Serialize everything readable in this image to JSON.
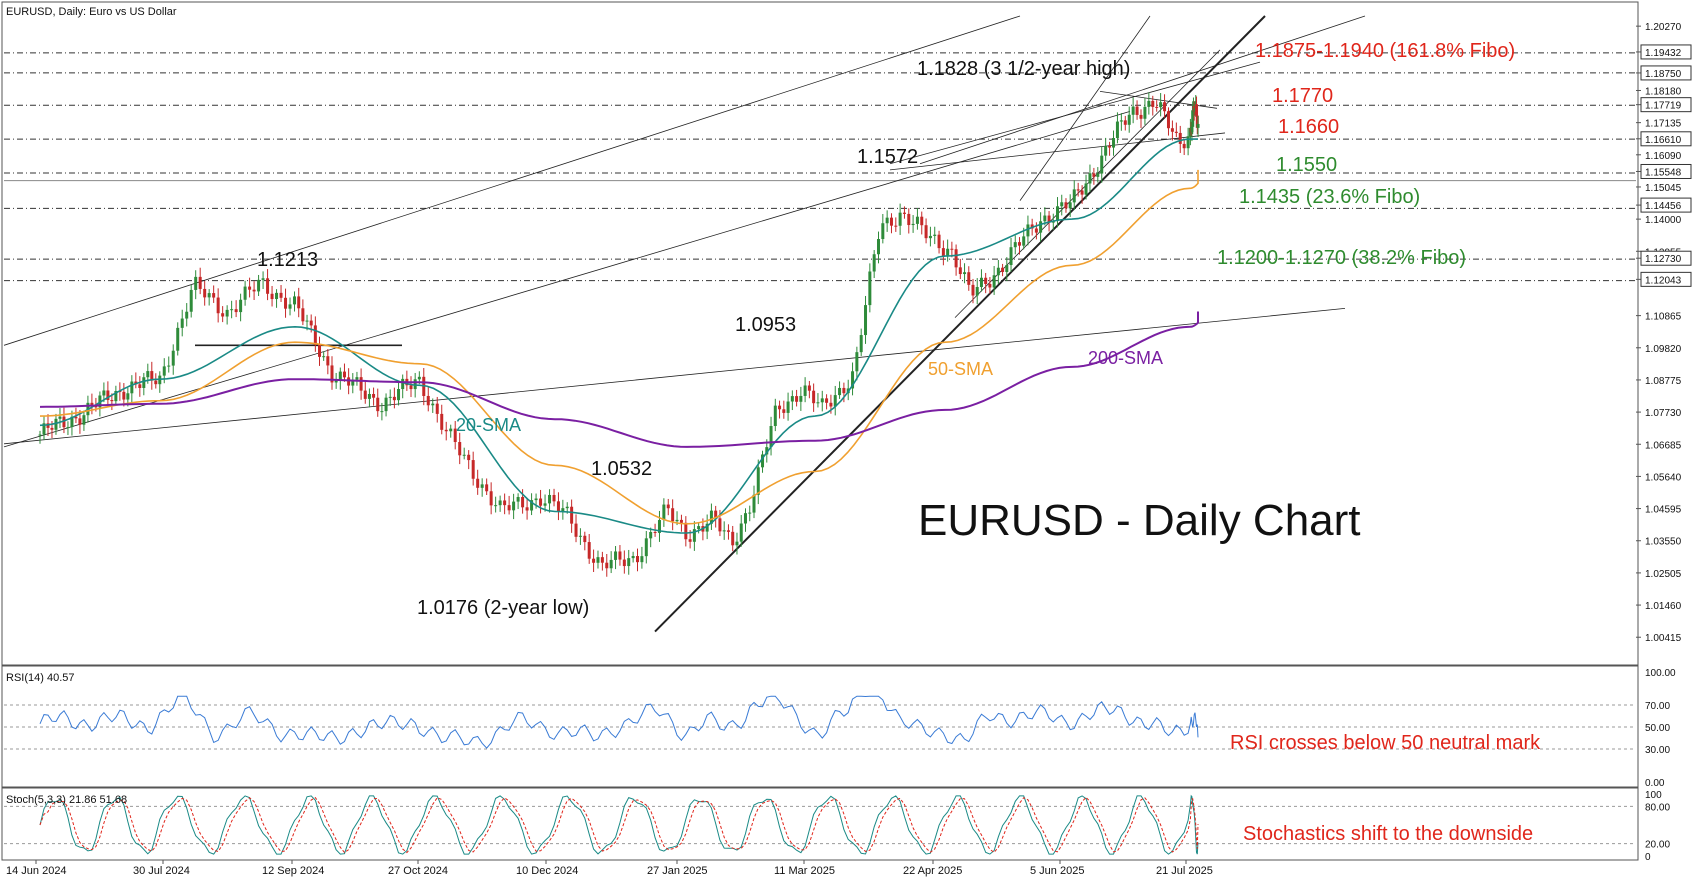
{
  "header": {
    "title": "EURUSD, Daily:  Euro vs US Dollar"
  },
  "chart_title": "EURUSD - Daily Chart",
  "colors": {
    "background": "#ffffff",
    "candle_up": "#2e8b3a",
    "candle_down": "#c62828",
    "sma20": "#1a8a86",
    "sma50": "#f0a030",
    "sma200": "#7a1fa2",
    "resistance_text": "#e0261b",
    "support_text": "#2e8b2e",
    "annotation_text": "#111111",
    "grid_dash": "#444444",
    "rsi_line": "#3a7bd5",
    "stoch_main": "#1a8a86",
    "stoch_signal": "#e0261b"
  },
  "price_axis": {
    "ticks": [
      "1.20270",
      "1.19432",
      "1.18750",
      "1.18180",
      "1.17719",
      "1.17135",
      "1.16610",
      "1.16090",
      "1.15548",
      "1.15045",
      "1.14456",
      "1.14000",
      "1.12955",
      "1.12730",
      "1.12043",
      "1.10865",
      "1.09820",
      "1.08775",
      "1.07730",
      "1.06685",
      "1.05640",
      "1.04595",
      "1.03550",
      "1.02505",
      "1.01460",
      "1.00415"
    ],
    "highlighted": [
      "1.19432",
      "1.18750",
      "1.17719",
      "1.16610",
      "1.15548",
      "1.14456",
      "1.12730",
      "1.12043"
    ]
  },
  "time_axis": [
    "14 Jun 2024",
    "30 Jul 2024",
    "12 Sep 2024",
    "27 Oct 2024",
    "10 Dec 2024",
    "27 Jan 2025",
    "11 Mar 2025",
    "22 Apr 2025",
    "5 Jun 2025",
    "21 Jul 2025"
  ],
  "levels": [
    {
      "label": "1.1875-1.1940 (161.8% Fibo)",
      "kind": "resistance"
    },
    {
      "label": "1.1770",
      "kind": "resistance"
    },
    {
      "label": "1.1660",
      "kind": "resistance"
    },
    {
      "label": "1.1550",
      "kind": "support"
    },
    {
      "label": "1.1435 (23.6% Fibo)",
      "kind": "support"
    },
    {
      "label": "1.1200-1.1270 (38.2% Fibo)",
      "kind": "support"
    }
  ],
  "annotations": {
    "high_1213": "1.1213",
    "high_0953": "1.0953",
    "high_1572": "1.1572",
    "high_1828": "1.1828 (3 1/2-year high)",
    "peak_0532": "1.0532",
    "low_0176": "1.0176 (2-year low)",
    "sma20_label": "20-SMA",
    "sma50_label": "50-SMA",
    "sma200_label": "200-SMA"
  },
  "rsi": {
    "header": "RSI(14) 40.57",
    "ticks": [
      "100.00",
      "70.00",
      "50.00",
      "30.00",
      "0.00"
    ],
    "note": "RSI crosses below 50 neutral mark"
  },
  "stoch": {
    "header": "Stoch(5,3,3) 21.86 51.68",
    "ticks": [
      "100",
      "80.00",
      "20.00",
      "0"
    ],
    "note": "Stochastics shift to the downside"
  },
  "chart_data": {
    "type": "line",
    "title": "EURUSD - Daily Chart",
    "x": [
      "14 Jun 2024",
      "30 Jul 2024",
      "12 Sep 2024",
      "27 Oct 2024",
      "10 Dec 2024",
      "27 Jan 2025",
      "11 Mar 2025",
      "22 Apr 2025",
      "5 Jun 2025",
      "21 Jul 2025",
      "24 Jul 2025"
    ],
    "series": [
      {
        "name": "EURUSD",
        "values": [
          1.07,
          1.085,
          1.115,
          1.08,
          1.045,
          1.045,
          1.09,
          1.14,
          1.145,
          1.17,
          1.155
        ]
      },
      {
        "name": "20-SMA",
        "values": [
          1.073,
          1.088,
          1.105,
          1.086,
          1.045,
          1.038,
          1.076,
          1.128,
          1.14,
          1.166,
          1.166
        ]
      },
      {
        "name": "50-SMA",
        "values": [
          1.076,
          1.081,
          1.1,
          1.093,
          1.06,
          1.041,
          1.058,
          1.1,
          1.125,
          1.15,
          1.156
        ]
      },
      {
        "name": "200-SMA",
        "values": [
          1.079,
          1.08,
          1.088,
          1.087,
          1.075,
          1.066,
          1.068,
          1.078,
          1.092,
          1.105,
          1.11
        ]
      }
    ],
    "ylim": [
      1.0,
      1.206
    ],
    "grid": false,
    "annotated_points": [
      {
        "label": "1.1213",
        "x": "12 Sep 2024",
        "y": 1.1213
      },
      {
        "label": "1.0532",
        "x": "27 Jan 2025",
        "y": 1.0532
      },
      {
        "label": "1.0176 (2-year low)",
        "x": "10 Jan 2025",
        "y": 1.0176
      },
      {
        "label": "1.0953",
        "x": "11 Mar 2025",
        "y": 1.0953
      },
      {
        "label": "1.1572",
        "x": "21 Apr 2025",
        "y": 1.1572
      },
      {
        "label": "1.1828 (3 1/2-year high)",
        "x": "1 Jul 2025",
        "y": 1.1828
      }
    ],
    "horizontal_levels": [
      1.194,
      1.1875,
      1.177,
      1.166,
      1.155,
      1.1435,
      1.127,
      1.12
    ],
    "rsi": {
      "last": 40.57,
      "levels": [
        70,
        50,
        30
      ]
    },
    "stochastic": {
      "k": 21.86,
      "d": 51.68,
      "levels": [
        80,
        20
      ]
    }
  }
}
